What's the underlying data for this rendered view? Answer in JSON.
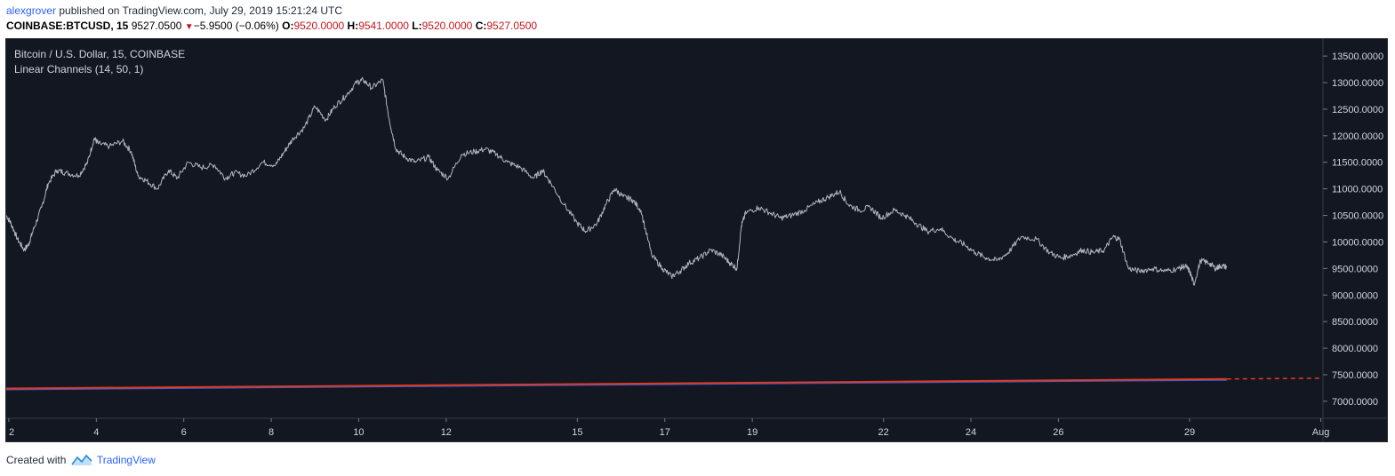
{
  "header": {
    "user": "alexgrover",
    "published_text": "published on TradingView.com, July 29, 2019 15:21:24 UTC",
    "symbol": "COINBASE:BTCUSD, 15",
    "last_price": "9527.0500",
    "change_arrow": "▼",
    "change": "−5.9500 (−0.06%)",
    "o_label": "O:",
    "o_value": "9520.0000",
    "h_label": "H:",
    "h_value": "9541.0000",
    "l_label": "L:",
    "l_value": "9520.0000",
    "c_label": "C:",
    "c_value": "9527.0500"
  },
  "footer": {
    "created_with": "Created with",
    "brand": "TradingView",
    "logo_icon": "tradingview-logo-icon"
  },
  "colors": {
    "background": "#131722",
    "price_line": "#b2b5be",
    "channel_red": "#e03a1e",
    "channel_blue": "#3a5bd9",
    "axis_text": "#d1d4dc",
    "down_red": "#c4161c",
    "link_blue": "#2962ff"
  },
  "chart_data": {
    "type": "line",
    "title": "Bitcoin / U.S. Dollar, 15, COINBASE",
    "indicator": "Linear Channels (14, 50, 1)",
    "x_unit": "day of month (July 2019)",
    "xlim": [
      1.94,
      32.05
    ],
    "ylim": [
      6680,
      13820
    ],
    "y_ticks": [
      13500,
      13000,
      12500,
      12000,
      11500,
      11000,
      10500,
      10000,
      9500,
      9000,
      8500,
      8000,
      7500,
      7000
    ],
    "y_tick_labels": [
      "13500.0000",
      "13000.0000",
      "12500.0000",
      "12000.0000",
      "11500.0000",
      "11000.0000",
      "10500.0000",
      "10000.0000",
      "9500.0000",
      "9000.0000",
      "8500.0000",
      "8000.0000",
      "7500.0000",
      "7000.0000"
    ],
    "x_ticks": [
      2,
      4,
      6,
      8,
      10,
      12,
      15,
      17,
      19,
      22,
      24,
      26,
      29,
      32
    ],
    "x_tick_labels": [
      "2",
      "4",
      "6",
      "8",
      "10",
      "12",
      "15",
      "17",
      "19",
      "22",
      "24",
      "26",
      "29",
      "Aug"
    ],
    "series": [
      {
        "name": "BTCUSD",
        "color": "#b2b5be",
        "x": [
          1.94,
          2.05,
          2.2,
          2.35,
          2.45,
          2.55,
          2.75,
          2.9,
          3.1,
          3.3,
          3.6,
          3.8,
          3.95,
          4.05,
          4.3,
          4.6,
          4.8,
          4.95,
          5.15,
          5.4,
          5.65,
          5.85,
          6.1,
          6.4,
          6.7,
          6.95,
          7.15,
          7.45,
          7.8,
          8.1,
          8.3,
          8.5,
          8.75,
          9.0,
          9.25,
          9.45,
          9.7,
          9.95,
          10.1,
          10.3,
          10.55,
          10.7,
          10.85,
          11.05,
          11.3,
          11.6,
          11.8,
          12.05,
          12.35,
          12.65,
          12.9,
          13.15,
          13.4,
          13.7,
          14.0,
          14.2,
          14.4,
          14.7,
          15.0,
          15.2,
          15.45,
          15.65,
          15.85,
          16.05,
          16.25,
          16.45,
          16.7,
          16.95,
          17.15,
          17.35,
          17.55,
          17.8,
          18.05,
          18.3,
          18.5,
          18.65,
          18.75,
          18.85,
          19.15,
          19.4,
          19.65,
          19.9,
          20.2,
          20.5,
          20.75,
          21.0,
          21.2,
          21.45,
          21.7,
          21.95,
          22.25,
          22.5,
          22.75,
          23.0,
          23.3,
          23.6,
          23.85,
          24.1,
          24.35,
          24.6,
          24.85,
          25.15,
          25.5,
          25.8,
          26.05,
          26.3,
          26.55,
          26.8,
          27.05,
          27.25,
          27.4,
          27.6,
          27.85,
          28.15,
          28.45,
          28.75,
          28.9,
          29.0,
          29.1,
          29.25,
          29.45,
          29.6,
          29.7,
          29.85
        ],
        "y": [
          10500,
          10350,
          10050,
          9850,
          9950,
          10200,
          10650,
          11100,
          11350,
          11300,
          11250,
          11500,
          11950,
          11850,
          11800,
          11900,
          11700,
          11250,
          11150,
          11000,
          11350,
          11200,
          11500,
          11400,
          11450,
          11200,
          11300,
          11250,
          11500,
          11450,
          11700,
          11950,
          12150,
          12550,
          12300,
          12550,
          12750,
          13000,
          13050,
          12900,
          13050,
          12300,
          11750,
          11600,
          11500,
          11600,
          11350,
          11200,
          11650,
          11700,
          11750,
          11650,
          11500,
          11400,
          11200,
          11350,
          11100,
          10700,
          10350,
          10200,
          10350,
          10700,
          11000,
          10850,
          10800,
          10600,
          9750,
          9500,
          9350,
          9450,
          9600,
          9700,
          9850,
          9750,
          9600,
          9500,
          10300,
          10550,
          10650,
          10550,
          10450,
          10500,
          10600,
          10750,
          10850,
          10950,
          10700,
          10600,
          10650,
          10450,
          10600,
          10500,
          10350,
          10200,
          10250,
          10050,
          9950,
          9800,
          9700,
          9650,
          9800,
          10100,
          10050,
          9800,
          9700,
          9750,
          9850,
          9800,
          9850,
          10100,
          10050,
          9500,
          9450,
          9500,
          9450,
          9500,
          9550,
          9450,
          9200,
          9650,
          9600,
          9500,
          9550,
          9530
        ]
      }
    ],
    "channel": {
      "name": "Linear Channels (14, 50, 1)",
      "solid_segments": [
        {
          "x": [
            1.94,
            29.85
          ],
          "y": [
            7240,
            7420
          ]
        }
      ],
      "projection": {
        "x": [
          29.85,
          32.05
        ],
        "y": [
          7420,
          7435
        ],
        "style": "dashed"
      }
    }
  }
}
